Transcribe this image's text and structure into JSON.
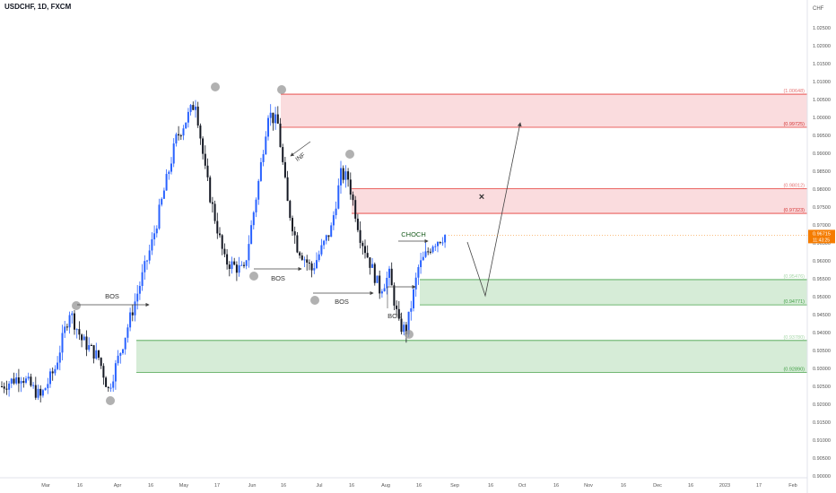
{
  "header": {
    "title": "USDCHF, 1D, FXCM"
  },
  "colors": {
    "up": "#2962ff",
    "down": "#131722",
    "supply_fill": "#f8d0d3",
    "supply_line": "#e53935",
    "demand_fill": "#c8e6c9",
    "demand_line": "#43a047",
    "current_price_bg": "#f57c00",
    "pivot": "#9e9e9e",
    "axis_text": "#555555",
    "choch_text": "#1b5e20"
  },
  "chart_data": {
    "type": "candlestick",
    "symbol": "USDCHF",
    "timeframe": "1D",
    "exchange": "FXCM",
    "y_axis_label": "CHF",
    "ylim": [
      0.9,
      1.03
    ],
    "y_ticks": [
      "1.02500",
      "1.02000",
      "1.01500",
      "1.01000",
      "1.00500",
      "1.00000",
      "0.99500",
      "0.99000",
      "0.98500",
      "0.98000",
      "0.97500",
      "0.97000",
      "0.96500",
      "0.96000",
      "0.95500",
      "0.95000",
      "0.94500",
      "0.94000",
      "0.93500",
      "0.93000",
      "0.92500",
      "0.92000",
      "0.91500",
      "0.91000",
      "0.90500",
      "0.90000"
    ],
    "x_ticks": [
      "Mar",
      "16",
      "Apr",
      "16",
      "May",
      "17",
      "Jun",
      "16",
      "Jul",
      "16",
      "Aug",
      "16",
      "Sep",
      "16",
      "Oct",
      "16",
      "Nov",
      "16",
      "Dec",
      "16",
      "2023",
      "17",
      "Feb"
    ],
    "current_price": {
      "value": "0.96715",
      "sub": "11:43:25"
    },
    "zones": [
      {
        "kind": "supply",
        "top": 1.00648,
        "bottom": 0.99725,
        "top_label": "(1.00648)",
        "bottom_label": "(0.99725)"
      },
      {
        "kind": "supply",
        "top": 0.98012,
        "bottom": 0.97323,
        "top_label": "(0.98012)",
        "bottom_label": "(0.97323)"
      },
      {
        "kind": "demand",
        "top": 0.95476,
        "bottom": 0.94771,
        "top_label": "(0.95476)",
        "bottom_label": "(0.94771)"
      },
      {
        "kind": "demand",
        "top": 0.9378,
        "bottom": 0.9289,
        "top_label": "(0.93780)",
        "bottom_label": "(0.92890)"
      }
    ],
    "annotations": {
      "bos": [
        "BOS",
        "BOS",
        "BOS",
        "BOS"
      ],
      "choch": "CHOCH",
      "inf": "INF",
      "target_mark": "×"
    },
    "anchors": [
      {
        "day": 0,
        "price": 0.925
      },
      {
        "day": 8,
        "price": 0.928
      },
      {
        "day": 16,
        "price": 0.922
      },
      {
        "day": 22,
        "price": 0.93
      },
      {
        "day": 28,
        "price": 0.946
      },
      {
        "day": 33,
        "price": 0.938
      },
      {
        "day": 40,
        "price": 0.933
      },
      {
        "day": 44,
        "price": 0.924
      },
      {
        "day": 50,
        "price": 0.937
      },
      {
        "day": 62,
        "price": 0.965
      },
      {
        "day": 72,
        "price": 0.994
      },
      {
        "day": 80,
        "price": 1.0045
      },
      {
        "day": 84,
        "price": 0.985
      },
      {
        "day": 86,
        "price": 0.978
      },
      {
        "day": 92,
        "price": 0.96
      },
      {
        "day": 100,
        "price": 0.957
      },
      {
        "day": 106,
        "price": 0.982
      },
      {
        "day": 110,
        "price": 1.0015
      },
      {
        "day": 114,
        "price": 0.998
      },
      {
        "day": 118,
        "price": 0.976
      },
      {
        "day": 122,
        "price": 0.964
      },
      {
        "day": 128,
        "price": 0.9575
      },
      {
        "day": 136,
        "price": 0.969
      },
      {
        "day": 140,
        "price": 0.984
      },
      {
        "day": 143,
        "price": 0.983
      },
      {
        "day": 148,
        "price": 0.967
      },
      {
        "day": 156,
        "price": 0.952
      },
      {
        "day": 160,
        "price": 0.956
      },
      {
        "day": 164,
        "price": 0.942
      },
      {
        "day": 167,
        "price": 0.9405
      },
      {
        "day": 172,
        "price": 0.958
      },
      {
        "day": 178,
        "price": 0.965
      },
      {
        "day": 183,
        "price": 0.9672
      }
    ]
  }
}
